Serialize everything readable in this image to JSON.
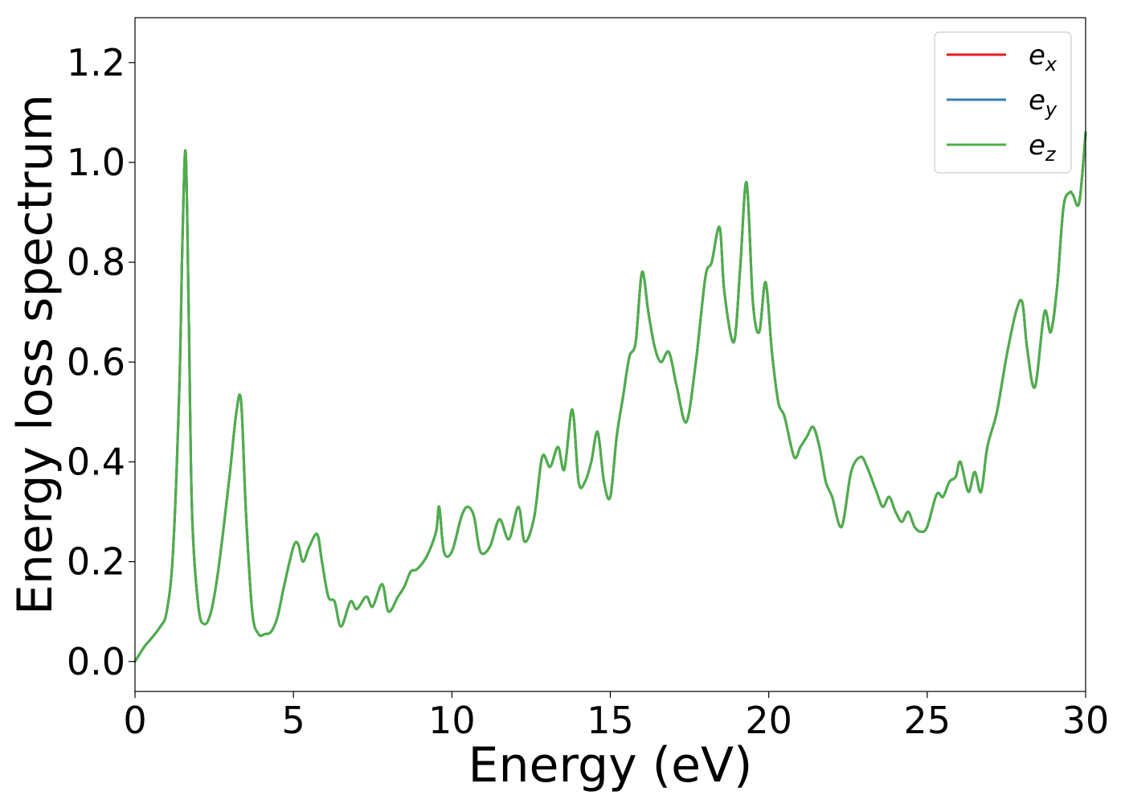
{
  "chart_data": {
    "type": "line",
    "xlabel": "Energy (eV)",
    "ylabel": "Energy loss spectrum",
    "xlim": [
      0,
      30
    ],
    "ylim": [
      -0.06,
      1.29
    ],
    "xticks": [
      0,
      5,
      10,
      15,
      20,
      25,
      30
    ],
    "xtick_labels": [
      "0",
      "5",
      "10",
      "15",
      "20",
      "25",
      "30"
    ],
    "yticks": [
      0.0,
      0.2,
      0.4,
      0.6,
      0.8,
      1.0,
      1.2
    ],
    "ytick_labels": [
      "0.0",
      "0.2",
      "0.4",
      "0.6",
      "0.8",
      "1.0",
      "1.2"
    ],
    "grid": false,
    "legend_position": "top-right",
    "x": [
      0,
      0.3,
      0.5,
      0.8,
      1.0,
      1.2,
      1.4,
      1.5,
      1.6,
      1.7,
      1.8,
      2.0,
      2.2,
      2.4,
      2.6,
      2.8,
      3.0,
      3.2,
      3.35,
      3.5,
      3.7,
      3.9,
      4.1,
      4.3,
      4.5,
      4.7,
      5.0,
      5.15,
      5.3,
      5.5,
      5.75,
      5.9,
      6.1,
      6.3,
      6.5,
      6.8,
      7.0,
      7.3,
      7.5,
      7.8,
      8.0,
      8.3,
      8.5,
      8.7,
      8.9,
      9.2,
      9.5,
      9.6,
      9.75,
      10.0,
      10.3,
      10.5,
      10.7,
      10.9,
      11.2,
      11.5,
      11.8,
      12.1,
      12.3,
      12.6,
      12.85,
      13.1,
      13.35,
      13.55,
      13.8,
      14.0,
      14.2,
      14.4,
      14.6,
      14.8,
      15.0,
      15.2,
      15.4,
      15.6,
      15.8,
      16.0,
      16.2,
      16.4,
      16.6,
      16.85,
      17.1,
      17.4,
      17.7,
      18.0,
      18.2,
      18.45,
      18.6,
      18.9,
      19.1,
      19.3,
      19.5,
      19.7,
      19.9,
      20.1,
      20.3,
      20.5,
      20.8,
      21.0,
      21.2,
      21.4,
      21.6,
      21.8,
      22.0,
      22.3,
      22.6,
      22.9,
      23.1,
      23.4,
      23.6,
      23.8,
      24.0,
      24.2,
      24.4,
      24.6,
      24.8,
      25.0,
      25.3,
      25.5,
      25.7,
      25.9,
      26.05,
      26.3,
      26.5,
      26.7,
      26.9,
      27.2,
      27.5,
      27.8,
      28.0,
      28.15,
      28.4,
      28.7,
      28.9,
      29.1,
      29.3,
      29.5,
      29.6,
      29.8,
      30.0
    ],
    "series": [
      {
        "name": "e_x",
        "label_base": "e",
        "label_sub": "x",
        "color": "#e41a1c",
        "y": [
          0.0,
          0.03,
          0.045,
          0.07,
          0.1,
          0.22,
          0.55,
          0.85,
          1.02,
          0.68,
          0.3,
          0.11,
          0.075,
          0.1,
          0.17,
          0.27,
          0.38,
          0.5,
          0.52,
          0.3,
          0.1,
          0.055,
          0.055,
          0.06,
          0.09,
          0.15,
          0.23,
          0.235,
          0.2,
          0.23,
          0.255,
          0.2,
          0.13,
          0.12,
          0.07,
          0.12,
          0.105,
          0.13,
          0.11,
          0.155,
          0.1,
          0.13,
          0.15,
          0.18,
          0.185,
          0.21,
          0.26,
          0.31,
          0.22,
          0.22,
          0.29,
          0.31,
          0.29,
          0.22,
          0.23,
          0.285,
          0.245,
          0.31,
          0.24,
          0.29,
          0.41,
          0.39,
          0.43,
          0.385,
          0.505,
          0.36,
          0.36,
          0.4,
          0.46,
          0.36,
          0.33,
          0.45,
          0.53,
          0.61,
          0.64,
          0.78,
          0.7,
          0.63,
          0.6,
          0.62,
          0.55,
          0.48,
          0.6,
          0.77,
          0.8,
          0.87,
          0.74,
          0.64,
          0.79,
          0.96,
          0.72,
          0.66,
          0.76,
          0.62,
          0.52,
          0.49,
          0.41,
          0.43,
          0.45,
          0.47,
          0.43,
          0.36,
          0.33,
          0.27,
          0.38,
          0.41,
          0.39,
          0.34,
          0.31,
          0.33,
          0.3,
          0.28,
          0.3,
          0.27,
          0.26,
          0.27,
          0.335,
          0.33,
          0.36,
          0.37,
          0.4,
          0.34,
          0.38,
          0.34,
          0.43,
          0.5,
          0.61,
          0.7,
          0.72,
          0.63,
          0.55,
          0.7,
          0.66,
          0.75,
          0.91,
          0.94,
          0.935,
          0.92,
          1.06
        ]
      },
      {
        "name": "e_y",
        "label_base": "e",
        "label_sub": "y",
        "color": "#377eb8",
        "y": [
          0.0,
          0.03,
          0.045,
          0.07,
          0.1,
          0.22,
          0.55,
          0.85,
          1.02,
          0.68,
          0.3,
          0.11,
          0.075,
          0.1,
          0.17,
          0.27,
          0.38,
          0.5,
          0.52,
          0.3,
          0.1,
          0.055,
          0.055,
          0.06,
          0.09,
          0.15,
          0.23,
          0.235,
          0.2,
          0.23,
          0.255,
          0.2,
          0.13,
          0.12,
          0.07,
          0.12,
          0.105,
          0.13,
          0.11,
          0.155,
          0.1,
          0.13,
          0.15,
          0.18,
          0.185,
          0.21,
          0.26,
          0.31,
          0.22,
          0.22,
          0.29,
          0.31,
          0.29,
          0.22,
          0.23,
          0.285,
          0.245,
          0.31,
          0.24,
          0.29,
          0.41,
          0.39,
          0.43,
          0.385,
          0.505,
          0.36,
          0.36,
          0.4,
          0.46,
          0.36,
          0.33,
          0.45,
          0.53,
          0.61,
          0.64,
          0.78,
          0.7,
          0.63,
          0.6,
          0.62,
          0.55,
          0.48,
          0.6,
          0.77,
          0.8,
          0.87,
          0.74,
          0.64,
          0.79,
          0.96,
          0.72,
          0.66,
          0.76,
          0.62,
          0.52,
          0.49,
          0.41,
          0.43,
          0.45,
          0.47,
          0.43,
          0.36,
          0.33,
          0.27,
          0.38,
          0.41,
          0.39,
          0.34,
          0.31,
          0.33,
          0.3,
          0.28,
          0.3,
          0.27,
          0.26,
          0.27,
          0.335,
          0.33,
          0.36,
          0.37,
          0.4,
          0.34,
          0.38,
          0.34,
          0.43,
          0.5,
          0.61,
          0.7,
          0.72,
          0.63,
          0.55,
          0.7,
          0.66,
          0.75,
          0.91,
          0.94,
          0.935,
          0.92,
          1.06
        ]
      },
      {
        "name": "e_z",
        "label_base": "e",
        "label_sub": "z",
        "color": "#4daf4a",
        "y": [
          0.0,
          0.03,
          0.045,
          0.07,
          0.1,
          0.22,
          0.55,
          0.85,
          1.02,
          0.68,
          0.3,
          0.11,
          0.075,
          0.1,
          0.17,
          0.27,
          0.38,
          0.5,
          0.52,
          0.3,
          0.1,
          0.055,
          0.055,
          0.06,
          0.09,
          0.15,
          0.23,
          0.235,
          0.2,
          0.23,
          0.255,
          0.2,
          0.13,
          0.12,
          0.07,
          0.12,
          0.105,
          0.13,
          0.11,
          0.155,
          0.1,
          0.13,
          0.15,
          0.18,
          0.185,
          0.21,
          0.26,
          0.31,
          0.22,
          0.22,
          0.29,
          0.31,
          0.29,
          0.22,
          0.23,
          0.285,
          0.245,
          0.31,
          0.24,
          0.29,
          0.41,
          0.39,
          0.43,
          0.385,
          0.505,
          0.36,
          0.36,
          0.4,
          0.46,
          0.36,
          0.33,
          0.45,
          0.53,
          0.61,
          0.64,
          0.78,
          0.7,
          0.63,
          0.6,
          0.62,
          0.55,
          0.48,
          0.6,
          0.77,
          0.8,
          0.87,
          0.74,
          0.64,
          0.79,
          0.96,
          0.72,
          0.66,
          0.76,
          0.62,
          0.52,
          0.49,
          0.41,
          0.43,
          0.45,
          0.47,
          0.43,
          0.36,
          0.33,
          0.27,
          0.38,
          0.41,
          0.39,
          0.34,
          0.31,
          0.33,
          0.3,
          0.28,
          0.3,
          0.27,
          0.26,
          0.27,
          0.335,
          0.33,
          0.36,
          0.37,
          0.4,
          0.34,
          0.38,
          0.34,
          0.43,
          0.5,
          0.61,
          0.7,
          0.72,
          0.63,
          0.55,
          0.7,
          0.66,
          0.75,
          0.91,
          0.94,
          0.935,
          0.92,
          1.06
        ]
      }
    ]
  }
}
